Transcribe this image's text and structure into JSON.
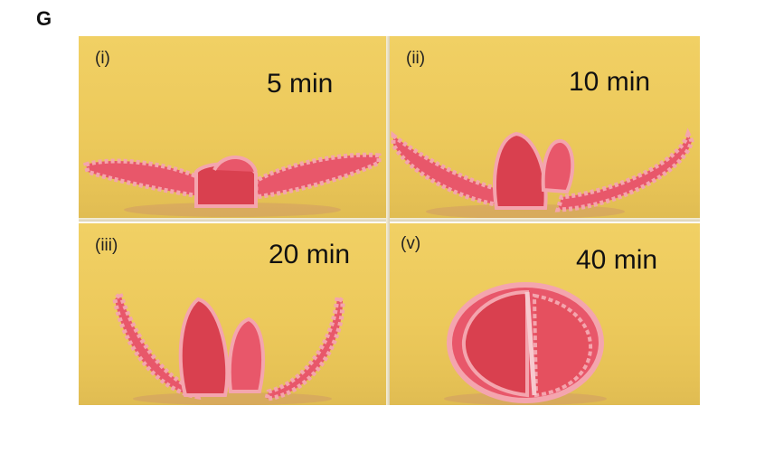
{
  "figure": {
    "letter": "G"
  },
  "panels": [
    {
      "id": "(i)",
      "time": "5 min"
    },
    {
      "id": "(ii)",
      "time": "10 min"
    },
    {
      "id": "(iii)",
      "time": "20 min"
    },
    {
      "id": "(v)",
      "time": "40 min"
    }
  ],
  "colors": {
    "background": "#ecc95b",
    "gel": "#e8576a",
    "gel_edge": "#f4a5ae",
    "gel_core": "#d9404f"
  }
}
